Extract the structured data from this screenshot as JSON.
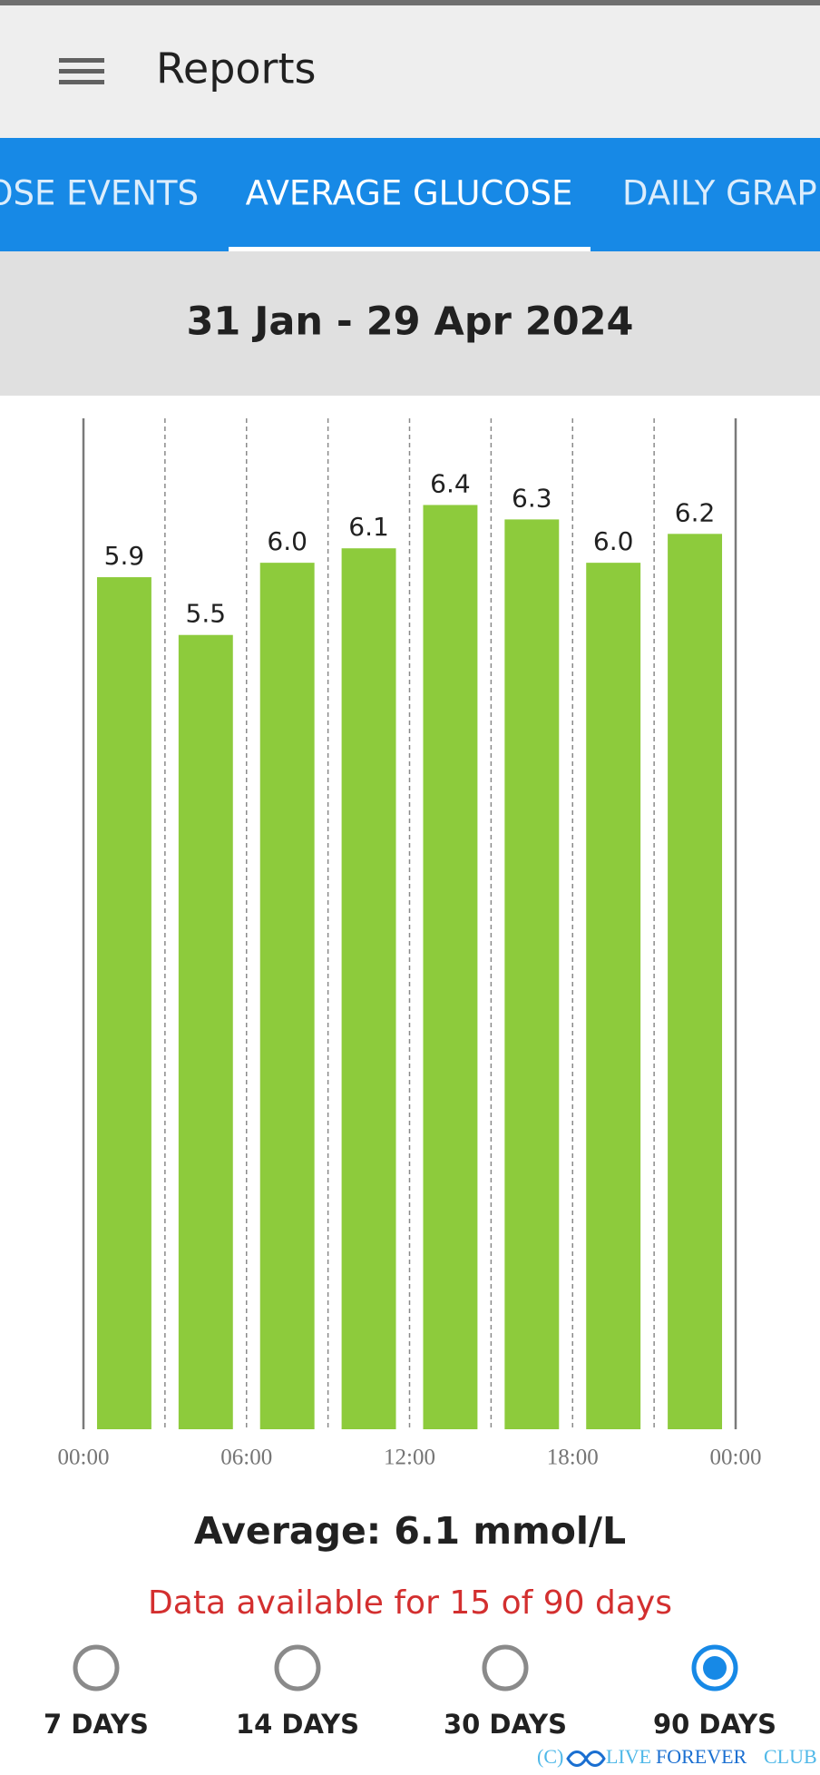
{
  "app_bar": {
    "title": "Reports"
  },
  "tabs": [
    "COSE EVENTS",
    "AVERAGE GLUCOSE",
    "DAILY GRAPH"
  ],
  "active_tab": 1,
  "date_range": "31 Jan - 29 Apr 2024",
  "chart_data": {
    "type": "bar",
    "categories": [
      null,
      null,
      null,
      null,
      null,
      null,
      null,
      null
    ],
    "values": [
      5.9,
      5.5,
      6.0,
      6.1,
      6.4,
      6.3,
      6.0,
      6.2
    ],
    "value_labels": [
      "5.9",
      "5.5",
      "6.0",
      "6.1",
      "6.4",
      "6.3",
      "6.0",
      "6.2"
    ],
    "color": "#8dcb3c",
    "ylim": [
      0,
      7
    ],
    "xlim": [
      0,
      24
    ],
    "xticks": [
      {
        "value": 0,
        "label": "00:00"
      },
      {
        "value": 6,
        "label": "06:00"
      },
      {
        "value": 12,
        "label": "12:00"
      },
      {
        "value": 18,
        "label": "18:00"
      },
      {
        "value": 24,
        "label": "00:00"
      }
    ],
    "grid": true
  },
  "average": "Average: 6.1 mmol/L",
  "availability": "Data available for 15 of 90 days",
  "ranges": [
    "7 DAYS",
    "14 DAYS",
    "30 DAYS",
    "90 DAYS"
  ],
  "selected_range": 3,
  "watermark": {
    "prefix": "(C)",
    "live": "LIVE",
    "forever": "FOREVER",
    "club": "CLUB"
  }
}
